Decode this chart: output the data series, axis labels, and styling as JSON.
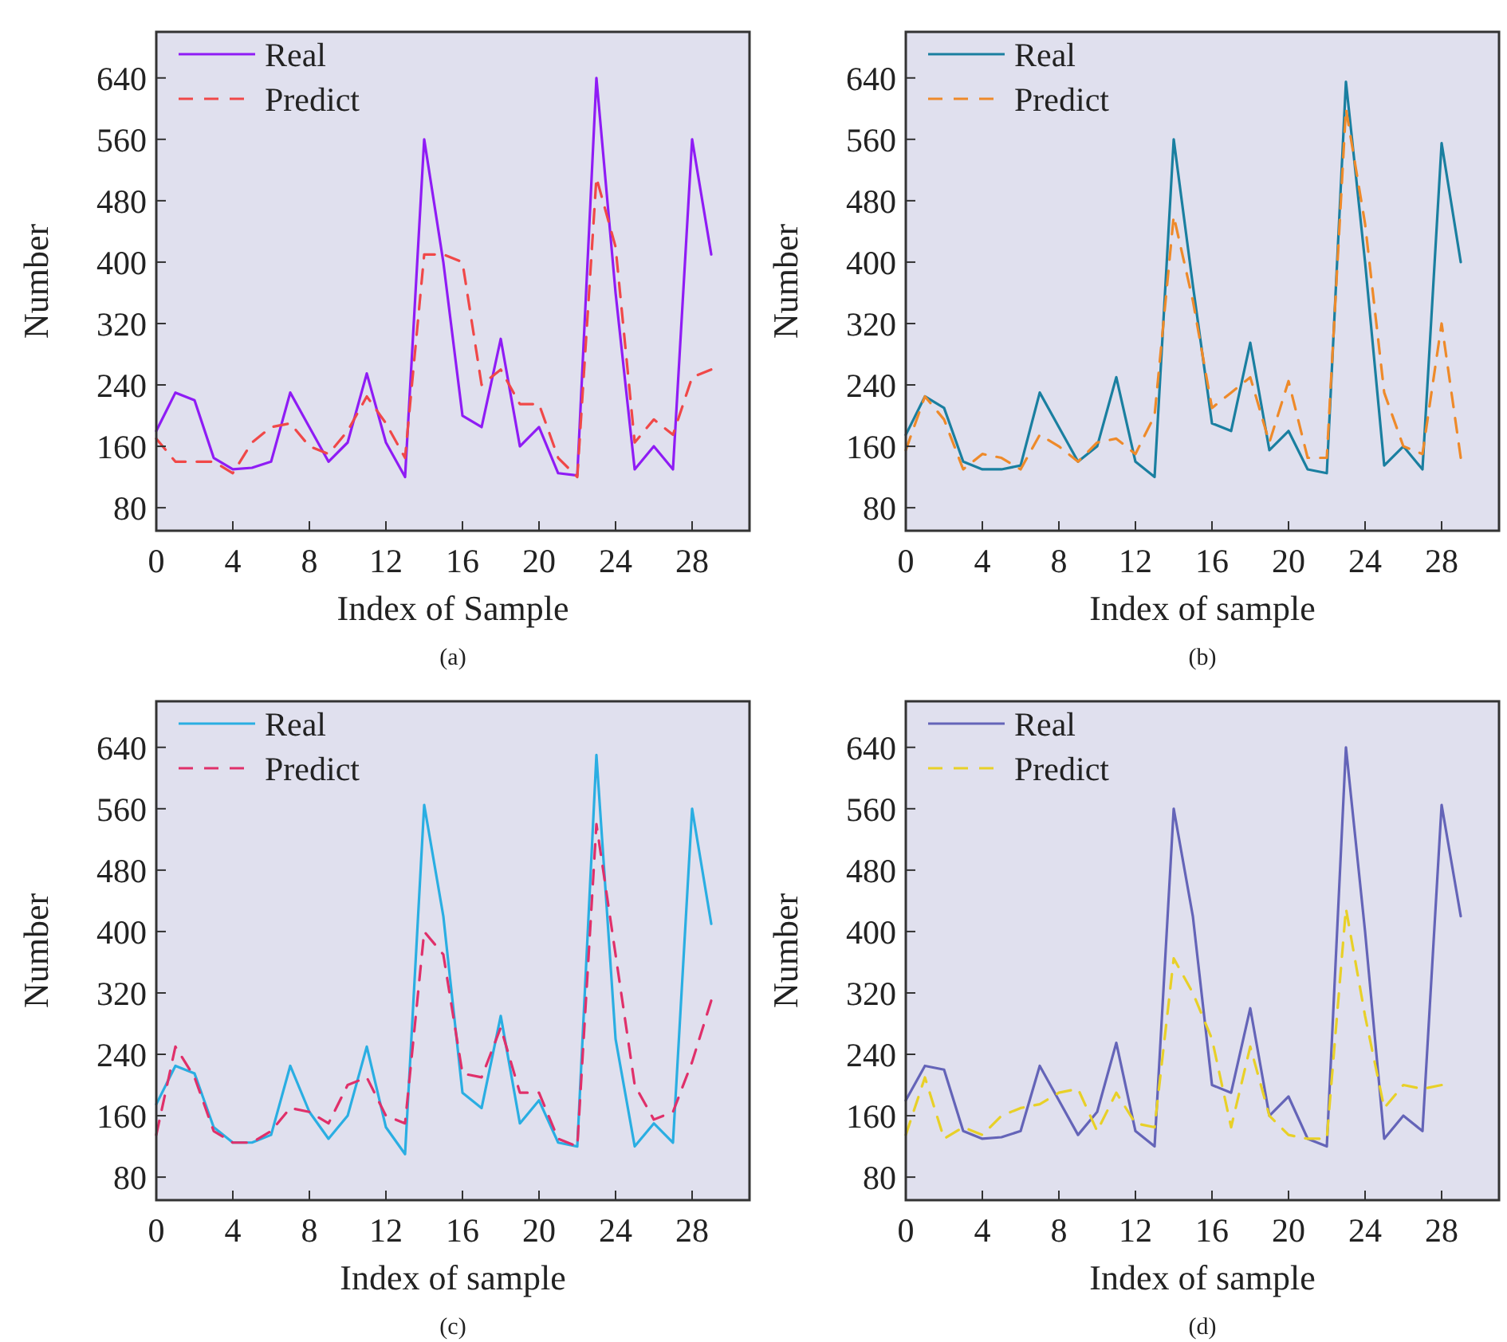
{
  "chart_data": [
    {
      "type": "line",
      "xlabel": "Index of Sample",
      "ylabel": "Number",
      "annotations": [
        "(a)"
      ],
      "x": [
        0,
        1,
        2,
        3,
        4,
        5,
        6,
        7,
        8,
        9,
        10,
        11,
        12,
        13,
        14,
        15,
        16,
        17,
        18,
        19,
        20,
        21,
        22,
        23,
        24,
        25,
        26,
        27,
        28,
        29
      ],
      "xlim": [
        0,
        31
      ],
      "ylim": [
        50,
        700
      ],
      "xticks": [
        0,
        4,
        8,
        12,
        16,
        20,
        24,
        28
      ],
      "yticks": [
        80,
        160,
        240,
        320,
        400,
        480,
        560,
        640
      ],
      "legend": "top left",
      "grid": false,
      "series": [
        {
          "name": "Real",
          "color": "#8f1cf5",
          "line_style": "solid",
          "values": [
            180,
            230,
            220,
            145,
            130,
            132,
            140,
            230,
            185,
            140,
            165,
            255,
            165,
            120,
            560,
            400,
            200,
            185,
            300,
            160,
            185,
            125,
            122,
            640,
            360,
            130,
            160,
            130,
            560,
            410
          ]
        },
        {
          "name": "Predict",
          "color": "#f04848",
          "line_style": "dashed",
          "values": [
            170,
            140,
            140,
            140,
            125,
            165,
            185,
            190,
            160,
            150,
            180,
            225,
            190,
            145,
            410,
            410,
            400,
            240,
            260,
            215,
            215,
            145,
            120,
            510,
            420,
            165,
            195,
            175,
            250,
            260
          ]
        }
      ]
    },
    {
      "type": "line",
      "xlabel": "Index of sample",
      "ylabel": "Number",
      "annotations": [
        "(b)"
      ],
      "x": [
        0,
        1,
        2,
        3,
        4,
        5,
        6,
        7,
        8,
        9,
        10,
        11,
        12,
        13,
        14,
        15,
        16,
        17,
        18,
        19,
        20,
        21,
        22,
        23,
        24,
        25,
        26,
        27,
        28,
        29
      ],
      "xlim": [
        0,
        31
      ],
      "ylim": [
        50,
        700
      ],
      "xticks": [
        0,
        4,
        8,
        12,
        16,
        20,
        24,
        28
      ],
      "yticks": [
        80,
        160,
        240,
        320,
        400,
        480,
        560,
        640
      ],
      "legend": "top left",
      "grid": false,
      "series": [
        {
          "name": "Real",
          "color": "#1a7fa0",
          "line_style": "solid",
          "values": [
            175,
            225,
            210,
            140,
            130,
            130,
            135,
            230,
            185,
            140,
            160,
            250,
            140,
            120,
            560,
            370,
            190,
            180,
            295,
            155,
            180,
            130,
            125,
            635,
            400,
            135,
            160,
            130,
            555,
            400
          ]
        },
        {
          "name": "Predict",
          "color": "#ee8a2a",
          "line_style": "dashed",
          "values": [
            155,
            225,
            195,
            130,
            150,
            145,
            130,
            175,
            160,
            140,
            165,
            170,
            150,
            200,
            460,
            350,
            210,
            230,
            250,
            165,
            245,
            145,
            145,
            600,
            450,
            230,
            160,
            150,
            320,
            145
          ]
        }
      ]
    },
    {
      "type": "line",
      "xlabel": "Index of sample",
      "ylabel": "Number",
      "annotations": [
        "(c)"
      ],
      "x": [
        0,
        1,
        2,
        3,
        4,
        5,
        6,
        7,
        8,
        9,
        10,
        11,
        12,
        13,
        14,
        15,
        16,
        17,
        18,
        19,
        20,
        21,
        22,
        23,
        24,
        25,
        26,
        27,
        28,
        29
      ],
      "xlim": [
        0,
        31
      ],
      "ylim": [
        50,
        700
      ],
      "xticks": [
        0,
        4,
        8,
        12,
        16,
        20,
        24,
        28
      ],
      "yticks": [
        80,
        160,
        240,
        320,
        400,
        480,
        560,
        640
      ],
      "legend": "top left",
      "grid": false,
      "series": [
        {
          "name": "Real",
          "color": "#2aaee2",
          "line_style": "solid",
          "values": [
            175,
            225,
            215,
            145,
            125,
            125,
            135,
            225,
            165,
            130,
            160,
            250,
            145,
            110,
            565,
            420,
            190,
            170,
            290,
            150,
            180,
            125,
            120,
            630,
            260,
            120,
            150,
            125,
            560,
            410
          ]
        },
        {
          "name": "Predict",
          "color": "#e0306a",
          "line_style": "dashed",
          "values": [
            135,
            250,
            210,
            140,
            125,
            125,
            140,
            170,
            165,
            150,
            200,
            210,
            160,
            150,
            400,
            370,
            215,
            210,
            275,
            190,
            190,
            130,
            120,
            540,
            370,
            200,
            155,
            165,
            230,
            310
          ]
        }
      ]
    },
    {
      "type": "line",
      "xlabel": "Index of sample",
      "ylabel": "Number",
      "annotations": [
        "(d)"
      ],
      "x": [
        0,
        1,
        2,
        3,
        4,
        5,
        6,
        7,
        8,
        9,
        10,
        11,
        12,
        13,
        14,
        15,
        16,
        17,
        18,
        19,
        20,
        21,
        22,
        23,
        24,
        25,
        26,
        27,
        28,
        29
      ],
      "xlim": [
        0,
        31
      ],
      "ylim": [
        50,
        700
      ],
      "xticks": [
        0,
        4,
        8,
        12,
        16,
        20,
        24,
        28
      ],
      "yticks": [
        80,
        160,
        240,
        320,
        400,
        480,
        560,
        640
      ],
      "legend": "top left",
      "grid": false,
      "series": [
        {
          "name": "Real",
          "color": "#6464b8",
          "line_style": "solid",
          "values": [
            180,
            225,
            220,
            140,
            130,
            132,
            140,
            225,
            180,
            135,
            165,
            255,
            140,
            120,
            560,
            420,
            200,
            190,
            300,
            160,
            185,
            130,
            120,
            640,
            400,
            130,
            160,
            140,
            565,
            420
          ]
        },
        {
          "name": "Predict",
          "color": "#e8d028",
          "line_style": "dashed",
          "values": [
            135,
            210,
            130,
            145,
            135,
            160,
            170,
            175,
            190,
            195,
            140,
            190,
            150,
            145,
            365,
            320,
            260,
            145,
            250,
            160,
            135,
            130,
            130,
            430,
            290,
            170,
            200,
            195,
            200,
            null
          ]
        }
      ]
    }
  ]
}
